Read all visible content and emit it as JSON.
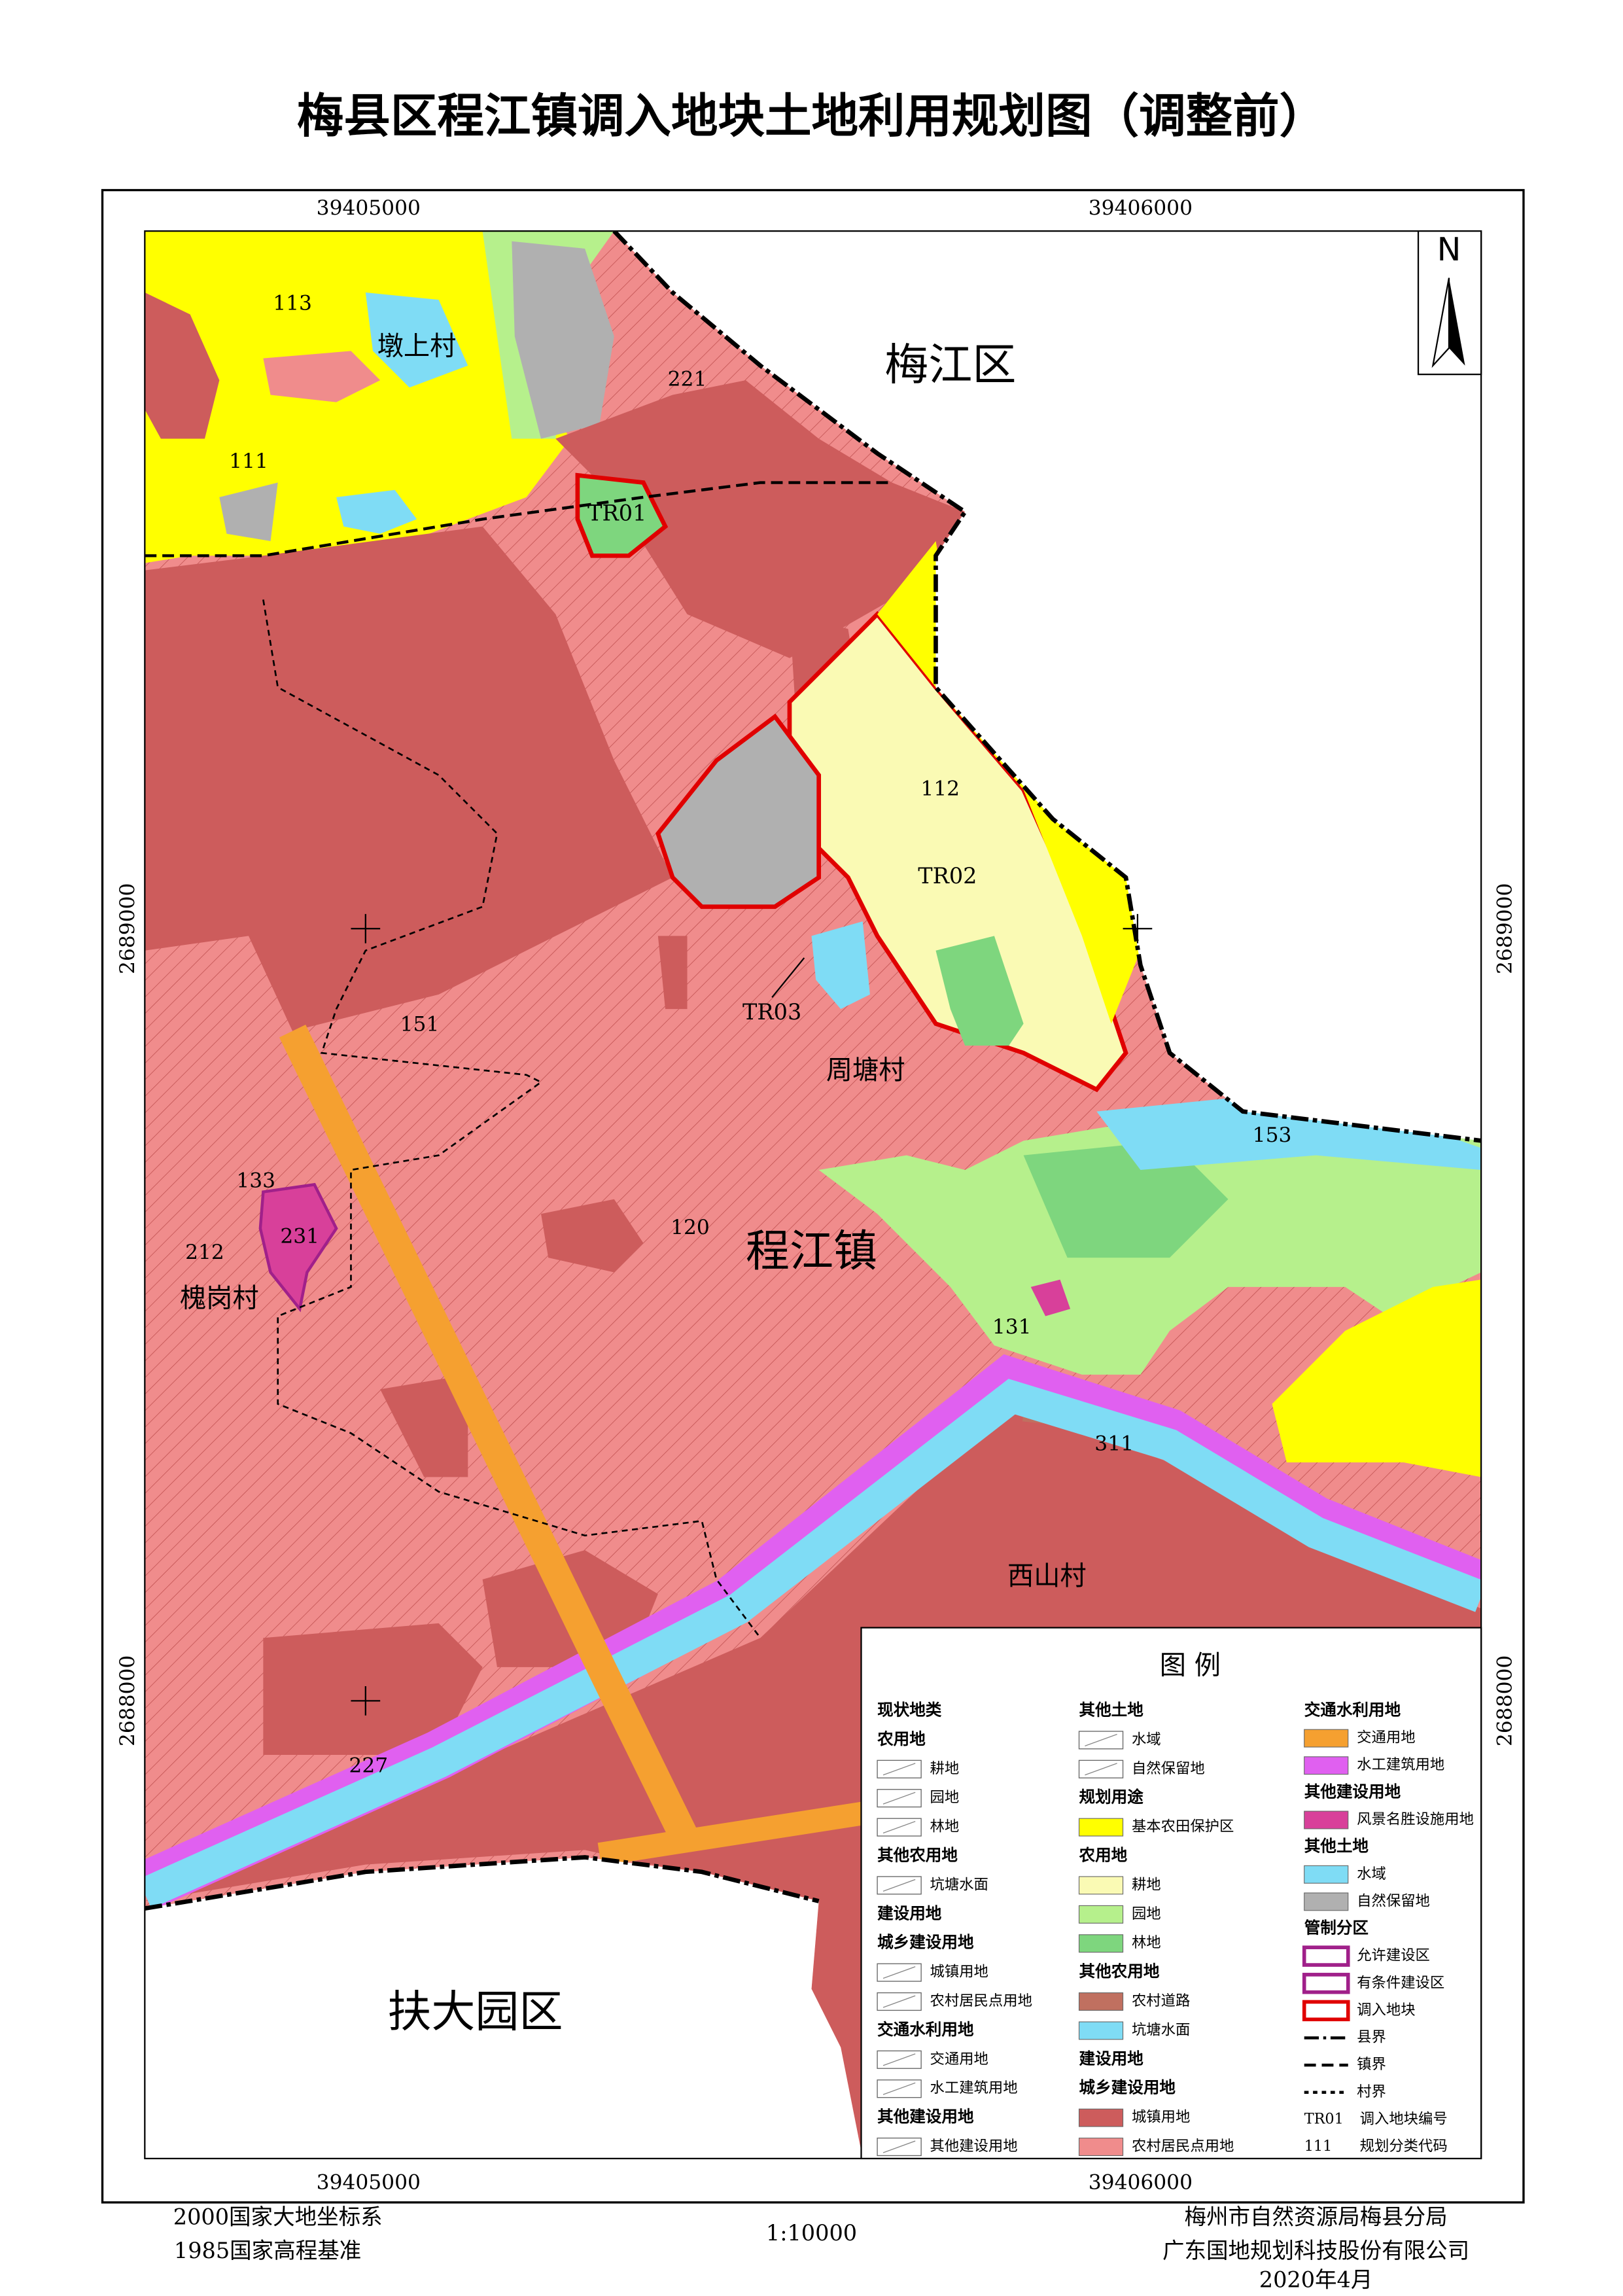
{
  "title": "梅县区程江镇调入地块土地利用规划图（调整前）",
  "coordinates": {
    "top": [
      "39405000",
      "39406000"
    ],
    "bottom": [
      "39405000",
      "39406000"
    ],
    "left": [
      "2689000",
      "2688000"
    ],
    "right": [
      "2689000",
      "2688000"
    ]
  },
  "north": "N",
  "places": [
    "梅江区",
    "程江镇",
    "扶大园区",
    "周塘村",
    "槐岗村",
    "西山村",
    "墩上村"
  ],
  "parcels": [
    "TR01",
    "TR02",
    "TR03"
  ],
  "codes": [
    "113",
    "111",
    "221",
    "112",
    "151",
    "133",
    "212",
    "231",
    "120",
    "153",
    "131",
    "311",
    "227"
  ],
  "legend": {
    "title": "图 例",
    "columns": [
      [
        "现状地类",
        "农用地",
        {
          "label": "耕地"
        },
        {
          "label": "园地"
        },
        {
          "label": "林地"
        },
        "其他农用地",
        {
          "label": "坑塘水面"
        },
        "建设用地",
        "城乡建设用地",
        {
          "label": "城镇用地"
        },
        {
          "label": "农村居民点用地"
        },
        "交通水利用地",
        {
          "label": "交通用地"
        },
        {
          "label": "水工建筑用地"
        },
        "其他建设用地",
        {
          "label": "其他建设用地"
        }
      ],
      [
        "其他土地",
        {
          "label": "水域"
        },
        {
          "label": "自然保留地"
        },
        "规划用途",
        {
          "label": "基本农田保护区",
          "color": "#ffff00"
        },
        "农用地",
        {
          "label": "耕地",
          "color": "#fafab4"
        },
        {
          "label": "园地",
          "color": "#b6f08c"
        },
        {
          "label": "林地",
          "color": "#7ed67e"
        },
        "其他农用地",
        {
          "label": "农村道路",
          "color": "#c07060"
        },
        {
          "label": "坑塘水面",
          "color": "#7fdcf5"
        },
        "建设用地",
        "城乡建设用地",
        {
          "label": "城镇用地",
          "color": "#cd5c5c"
        },
        {
          "label": "农村居民点用地",
          "color": "#f08c8c"
        }
      ],
      [
        "交通水利用地",
        {
          "label": "交通用地",
          "color": "#f5a030"
        },
        {
          "label": "水工建筑用地",
          "color": "#e060f0"
        },
        "其他建设用地",
        {
          "label": "风景名胜设施用地",
          "color": "#d8409a"
        },
        "其他土地",
        {
          "label": "水域",
          "color": "#7fdcf5"
        },
        {
          "label": "自然保留地",
          "color": "#b0b0b0"
        },
        "管制分区",
        {
          "label": "允许建设区",
          "color": "#ffffff",
          "border": "#a0208a"
        },
        {
          "label": "有条件建设区",
          "color": "#ffffff",
          "border": "#a0208a"
        },
        {
          "label": "调入地块",
          "color": "#ffffff",
          "border": "#e00000"
        },
        {
          "label": "县界",
          "line": "10 3 2 3"
        },
        {
          "label": "镇界",
          "line": "8 4"
        },
        {
          "label": "村界",
          "line": "3 3"
        },
        {
          "code": "TR01",
          "label": "调入地块编号"
        },
        {
          "code": "111",
          "label": "规划分类代码"
        }
      ]
    ]
  },
  "footer": {
    "datum": "2000国家大地坐标系",
    "elevation": "1985国家高程基准",
    "scale": "1:10000",
    "agency": "梅州市自然资源局梅县分局",
    "company": "广东国地规划科技股份有限公司",
    "date": "2020年4月"
  }
}
